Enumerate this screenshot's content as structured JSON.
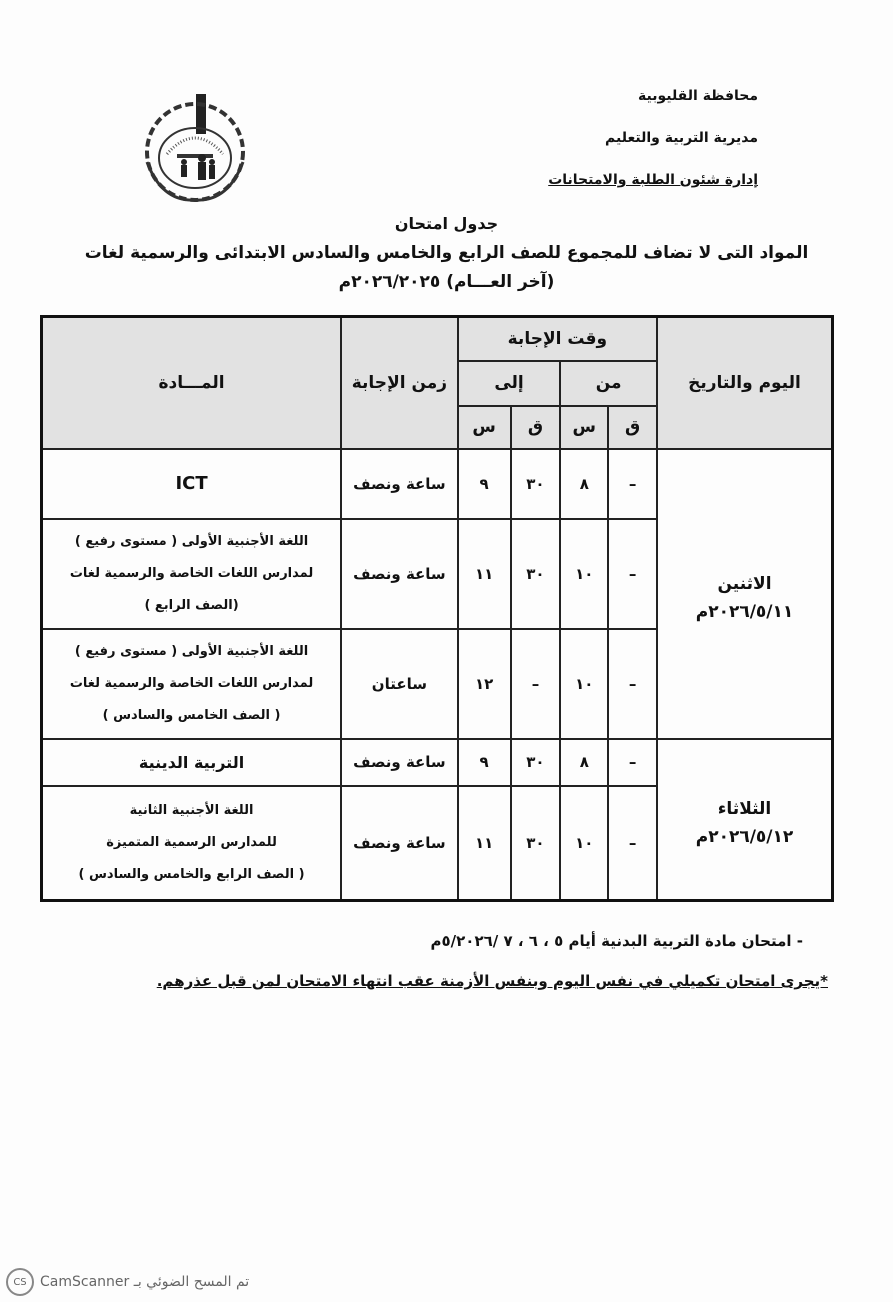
{
  "header": {
    "governorate": "محافظة القليوبية",
    "directorate": "مديرية التربية والتعليم",
    "department": "إدارة شئون الطلبة والامتحانات"
  },
  "title": {
    "line1": "جدول امتحان",
    "line2": "المواد التى لا تضاف للمجموع للصف الرابع والخامس والسادس الابتدائى والرسمية لغات",
    "line3": "(آخر العـــام) ٢٠٢٦/٢٠٢٥م"
  },
  "table": {
    "headers": {
      "day_date": "اليوم والتاريخ",
      "answer_time": "وقت الإجابة",
      "from": "من",
      "to": "إلى",
      "minute": "ق",
      "hour": "س",
      "duration": "زمن الإجابة",
      "subject": "المـــادة"
    },
    "days": [
      {
        "day": "الاثنين",
        "date": "٢٠٢٦/٥/١١م",
        "rows": [
          {
            "from_min": "–",
            "from_hour": "٨",
            "to_min": "٣٠",
            "to_hour": "٩",
            "duration": "ساعة ونصف",
            "subject": [
              "ICT"
            ]
          },
          {
            "from_min": "–",
            "from_hour": "١٠",
            "to_min": "٣٠",
            "to_hour": "١١",
            "duration": "ساعة ونصف",
            "subject": [
              "اللغة الأجنبية الأولى ( مستوى رفيع )",
              "لمدارس اللغات الخاصة والرسمية لغات",
              "(الصف الرابع )"
            ]
          },
          {
            "from_min": "–",
            "from_hour": "١٠",
            "to_min": "–",
            "to_hour": "١٢",
            "duration": "ساعتان",
            "subject": [
              "اللغة الأجنبية الأولى ( مستوى رفيع )",
              "لمدارس اللغات الخاصة والرسمية لغات",
              "( الصف الخامس والسادس )"
            ]
          }
        ]
      },
      {
        "day": "الثلاثاء",
        "date": "٢٠٢٦/٥/١٢م",
        "rows": [
          {
            "from_min": "–",
            "from_hour": "٨",
            "to_min": "٣٠",
            "to_hour": "٩",
            "duration": "ساعة ونصف",
            "subject": [
              "التربية الدينية"
            ]
          },
          {
            "from_min": "–",
            "from_hour": "١٠",
            "to_min": "٣٠",
            "to_hour": "١١",
            "duration": "ساعة ونصف",
            "subject": [
              "اللغة الأجنبية الثانية",
              "للمدارس الرسمية المتميزة",
              "( الصف الرابع والخامس والسادس )"
            ]
          }
        ]
      }
    ]
  },
  "notes": {
    "pe": "- امتحان مادة التربية البدنية أيام ٥ ، ٦ ، ٧ /٥/٢٠٢٦م",
    "makeup": "*يجرى امتحان تكميلي في نفس اليوم وبنفس الأزمنة عقب انتهاء الامتحان لمن قبل عذرهم."
  },
  "watermark": {
    "text": "تم المسح الضوئي بـ CamScanner",
    "logo": "CS"
  }
}
